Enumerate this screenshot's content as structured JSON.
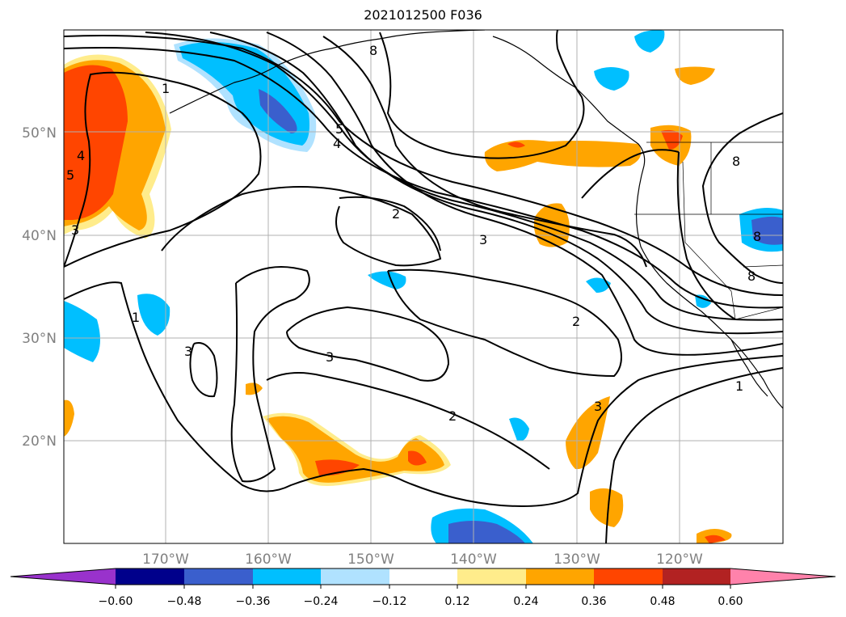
{
  "title": "2021012500 F036",
  "map": {
    "lat_labels": [
      "50°N",
      "40°N",
      "30°N",
      "20°N"
    ],
    "lon_labels": [
      "170°W",
      "160°W",
      "150°W",
      "140°W",
      "130°W",
      "120°W"
    ],
    "contour_labels": [
      "1",
      "2",
      "3",
      "4",
      "5",
      "8"
    ]
  },
  "colorbar": {
    "ticks": [
      "−0.60",
      "−0.48",
      "−0.36",
      "−0.24",
      "−0.12",
      "0.12",
      "0.24",
      "0.36",
      "0.48",
      "0.60"
    ],
    "colors": {
      "under": "#9932cc",
      "lvl1": "#00008b",
      "lvl2": "#3a5fcd",
      "lvl3": "#00bfff",
      "lvl4": "#b0e2ff",
      "neutral": "#ffffff",
      "lvl5": "#ffec8b",
      "lvl6": "#ffa500",
      "lvl7": "#ff4500",
      "lvl8": "#b22222",
      "over": "#ff82ab"
    }
  }
}
